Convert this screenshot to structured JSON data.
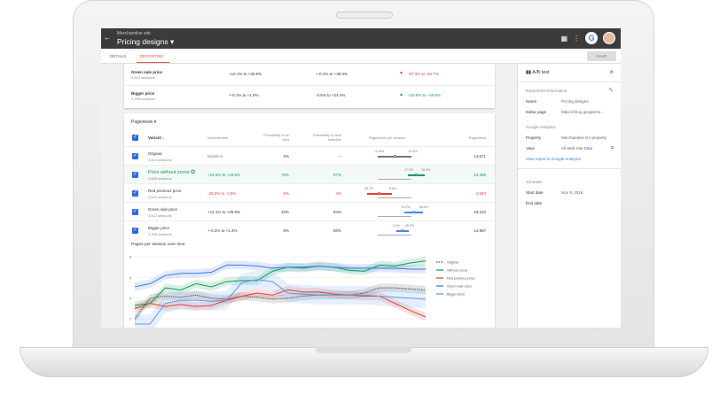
{
  "header": {
    "site": "Merchandise site",
    "title": "Pricing designs"
  },
  "tabs": [
    {
      "label": "DETAILS"
    },
    {
      "label": "REPORTING"
    }
  ],
  "save_label": "SAVE",
  "top_rows": [
    {
      "name": "Green sale price",
      "sessions": "4,612 sessions",
      "c1": "+12.1% to +25.8%",
      "c2": "+-0.1% to +38.0%",
      "c3": "-97.3% to -35.7%",
      "c3_trend": "down"
    },
    {
      "name": "Bigger price",
      "sessions": "4,398 sessions",
      "c1": "+-0.1% to +1.4%",
      "c2": "-3.5% to +24.4%",
      "c3": "+29.9% to +40.6%",
      "c3_trend": "up"
    }
  ],
  "metric": "Pageviews",
  "columns": {
    "variant": "Variant",
    "improvement": "Improvement",
    "prob_best": "Probability to be best",
    "prob_baseline": "Probability to beat baseline",
    "pps": "Pageviews per session",
    "pageviews": "Pageviews"
  },
  "rows": [
    {
      "name": "Original",
      "sessions": "4,414 sessions",
      "improvement": "Baseline",
      "best": "5%",
      "baseline": "–",
      "lo": "-21.8%",
      "hi": "22.4%",
      "lov": -21.8,
      "hiv": 22.4,
      "pageviews": "14,671",
      "color": "#757575"
    },
    {
      "name": "Price without zeros",
      "sessions": "4,609 sessions",
      "improvement": "+15.6% to +34.9%",
      "best": "70%",
      "baseline": "97%",
      "lo": "17.3%",
      "hi": "39.5%",
      "lov": 17.3,
      "hiv": 39.5,
      "pageviews": "23,488",
      "color": "#0f9d58",
      "leader": true
    },
    {
      "name": "Red previous price",
      "sessions": "4,623 sessions",
      "improvement": "-20.3% to -1.9%",
      "best": "6%",
      "baseline": "4%",
      "lo": "-35.7%",
      "hi": "-3.6%",
      "lov": -35.7,
      "hiv": -3.6,
      "pageviews": "4,553",
      "color": "#db4437"
    },
    {
      "name": "Green sale price",
      "sessions": "4,612 sessions",
      "improvement": "+12.1% to +25.8%",
      "best": "40%",
      "baseline": "94%",
      "lo": "13.2%",
      "hi": "36.4%",
      "lov": 13.2,
      "hiv": 36.4,
      "pageviews": "23,102",
      "color": "#4285f4"
    },
    {
      "name": "Bigger price",
      "sessions": "4,398 sessions",
      "improvement": "+-0.1% to +1.4%",
      "best": "5%",
      "baseline": "50%",
      "lo": "2.1%",
      "hi": "18.2%",
      "lov": 2.1,
      "hiv": 18.2,
      "pageviews": "14,997",
      "color": "#4285f4"
    }
  ],
  "side": {
    "title": "A/B test",
    "exp_info": "Experiment information",
    "name_label": "Name",
    "name_value": "Pricing designs",
    "editor_label": "Editor page",
    "editor_value": "https://shop.googleme...",
    "ga": "Google Analytics",
    "property_label": "Property",
    "property_value": "Merchandise GA property",
    "view_label": "View",
    "view_value": "All Web Site Data",
    "report_link": "View report in Google Analytics",
    "schedule": "Schedule",
    "start_label": "Start date",
    "start_value": "Nov 9, 2016",
    "end_label": "End date"
  },
  "chart_data": {
    "type": "line",
    "title": "Pages per session over time",
    "ylim": [
      1.5,
      8
    ],
    "yticks": [
      "8",
      "6",
      "4",
      "2"
    ],
    "legend": "right",
    "grid": true,
    "series": [
      {
        "name": "Original",
        "color": "#555555",
        "dashed": true,
        "values": [
          2,
          4,
          4.2,
          4.1,
          4.3,
          4,
          3.9,
          4.2,
          4.1,
          3.9,
          4,
          4.2,
          4.3,
          4.3,
          4.3,
          4.5,
          5,
          5,
          4.9,
          4.8
        ]
      },
      {
        "name": "Without zeros",
        "color": "#0f9d58",
        "values": [
          3.3,
          3.5,
          5,
          4.8,
          5.4,
          5.1,
          5.6,
          5.7,
          5.7,
          6.6,
          7,
          6.9,
          7.1,
          7,
          6.7,
          6.6,
          7.2,
          7.1,
          7.4,
          7.6
        ]
      },
      {
        "name": "Red previous price",
        "color": "#db4437",
        "values": [
          3,
          3.5,
          3.2,
          3.4,
          3.2,
          3.3,
          3.8,
          4.2,
          4.5,
          4.3,
          4.8,
          4.6,
          4.6,
          4.4,
          4.3,
          4.2,
          4.2,
          3.5,
          2.8,
          2.2
        ]
      },
      {
        "name": "Green sale price",
        "color": "#3b78e7",
        "values": [
          5.1,
          5.4,
          6.2,
          6.4,
          6.4,
          6.5,
          7.2,
          7.2,
          7.1,
          6.9,
          7,
          7,
          7.1,
          7,
          6.9,
          6.9,
          6.9,
          6.9,
          6.8,
          6.8
        ]
      },
      {
        "name": "Bigger price",
        "color": "#5c9cf5",
        "values": [
          1.5,
          1.5,
          3.5,
          3.8,
          3.8,
          3.7,
          3.8,
          5.5,
          5.8,
          5.6,
          4.5,
          4.4,
          4.3,
          4.3,
          4.3,
          4.3,
          4.2,
          4.1,
          4,
          3.9
        ]
      }
    ]
  }
}
